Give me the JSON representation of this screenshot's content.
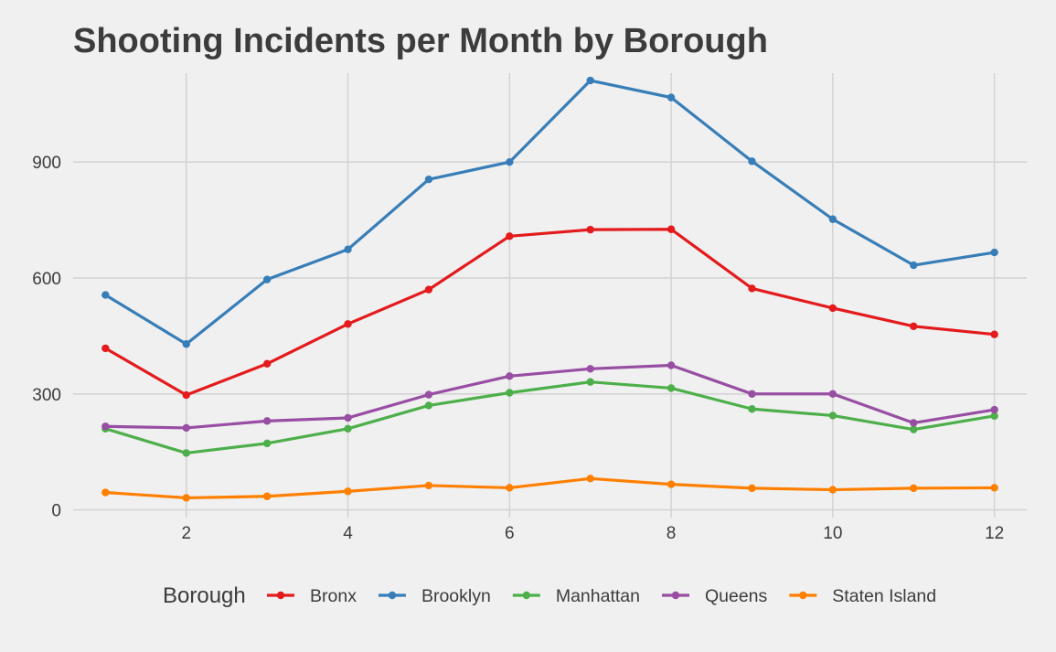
{
  "chart_data": {
    "type": "line",
    "title": "Shooting Incidents per Month by Borough",
    "xlabel": "",
    "ylabel": "",
    "x": [
      1,
      2,
      3,
      4,
      5,
      6,
      7,
      8,
      9,
      10,
      11,
      12
    ],
    "xlim": [
      0.6,
      12.4
    ],
    "ylim": [
      -20,
      1130
    ],
    "x_ticks": [
      2,
      4,
      6,
      8,
      10,
      12
    ],
    "y_ticks": [
      0,
      300,
      600,
      900
    ],
    "grid": true,
    "legend": {
      "title": "Borough",
      "placement": "bottom"
    },
    "series": [
      {
        "name": "Bronx",
        "color": "#e41a1c",
        "values": [
          418,
          297,
          378,
          481,
          570,
          708,
          725,
          726,
          573,
          522,
          475,
          454
        ]
      },
      {
        "name": "Brooklyn",
        "color": "#377eb8",
        "values": [
          556,
          429,
          596,
          674,
          855,
          900,
          1111,
          1067,
          902,
          752,
          633,
          666
        ]
      },
      {
        "name": "Manhattan",
        "color": "#4daf4a",
        "values": [
          210,
          147,
          172,
          210,
          270,
          303,
          331,
          315,
          261,
          244,
          208,
          243
        ]
      },
      {
        "name": "Queens",
        "color": "#984ea3",
        "values": [
          216,
          212,
          230,
          238,
          298,
          346,
          365,
          374,
          300,
          300,
          225,
          259
        ]
      },
      {
        "name": "Staten Island",
        "color": "#ff7f00",
        "values": [
          45,
          31,
          35,
          48,
          63,
          57,
          81,
          66,
          56,
          52,
          56,
          57
        ]
      }
    ]
  }
}
